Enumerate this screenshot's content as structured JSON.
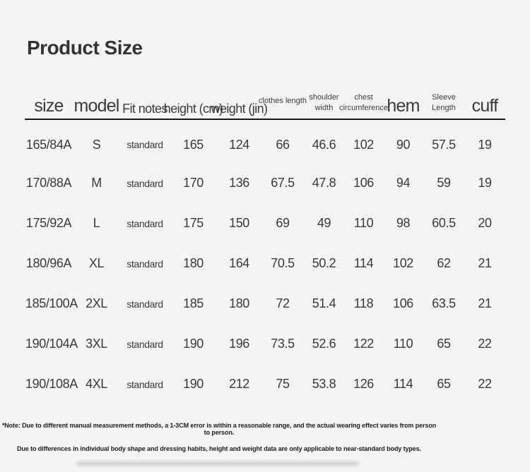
{
  "title": "Product Size",
  "style": {
    "background_color": "#f4f4f3",
    "text_color": "#3a3a3a",
    "rule_color": "#161616"
  },
  "table": {
    "headers": [
      {
        "text": "size"
      },
      {
        "text": "model"
      },
      {
        "text": "Fit notes"
      },
      {
        "text": "height (cm)"
      },
      {
        "text": "weight (jin)"
      },
      {
        "text": "clothes length"
      },
      {
        "text": "shoulder\nwidth"
      },
      {
        "text": "chest\ncircumference"
      },
      {
        "text": "hem"
      },
      {
        "text": "Sleeve\nLength"
      },
      {
        "text": "cuff"
      }
    ],
    "rows": [
      [
        "165/84A",
        "S",
        "standard",
        "165",
        "124",
        "66",
        "46.6",
        "102",
        "90",
        "57.5",
        "19"
      ],
      [
        "170/88A",
        "M",
        "standard",
        "170",
        "136",
        "67.5",
        "47.8",
        "106",
        "94",
        "59",
        "19"
      ],
      [
        "175/92A",
        "L",
        "standard",
        "175",
        "150",
        "69",
        "49",
        "110",
        "98",
        "60.5",
        "20"
      ],
      [
        "180/96A",
        "XL",
        "standard",
        "180",
        "164",
        "70.5",
        "50.2",
        "114",
        "102",
        "62",
        "21"
      ],
      [
        "185/100A",
        "2XL",
        "standard",
        "185",
        "180",
        "72",
        "51.4",
        "118",
        "106",
        "63.5",
        "21"
      ],
      [
        "190/104A",
        "3XL",
        "standard",
        "190",
        "196",
        "73.5",
        "52.6",
        "122",
        "110",
        "65",
        "22"
      ],
      [
        "190/108A",
        "4XL",
        "standard",
        "190",
        "212",
        "75",
        "53.8",
        "126",
        "114",
        "65",
        "22"
      ]
    ]
  },
  "notes": {
    "line1": "*Note: Due to different manual measurement methods, a 1-3CM error is within a reasonable range, and the actual wearing effect varies from person to person.",
    "line2": "Due to differences in individual body shape and dressing habits, height and weight data are only applicable to near-standard body types."
  }
}
